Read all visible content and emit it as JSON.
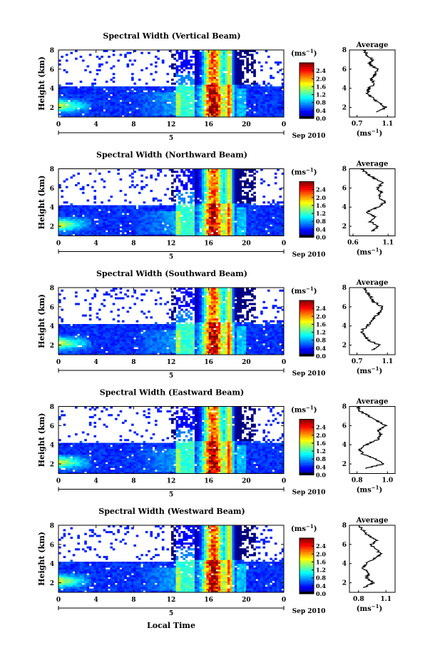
{
  "figure": {
    "shared_xlabel": "Local Time",
    "date_label": "Sep 2010",
    "day_label": "5",
    "unit_label": "(ms",
    "unit_exp": "−1",
    "height_axis_label": "Height (km)",
    "avg_title": "Average"
  },
  "chart_data": [
    {
      "type": "heatmap",
      "title": "Spectral Width (Vertical Beam)",
      "ylabel": "Height (km)",
      "x_ticks": [
        "0",
        "4",
        "8",
        "12",
        "16",
        "20",
        "0"
      ],
      "x_range": [
        0,
        24
      ],
      "y_ticks": [
        "2",
        "4",
        "6",
        "8"
      ],
      "y_range": [
        1,
        8
      ],
      "colorbar_ticks": [
        "0.0",
        "0.4",
        "0.8",
        "1.2",
        "1.6",
        "2.0",
        "2.4"
      ],
      "colorbar_range": [
        0,
        2.8
      ],
      "average_profile": {
        "title": "Average",
        "x_ticks": [
          "0.7",
          "1.1"
        ],
        "x_range": [
          0.6,
          1.2
        ],
        "y_ticks": [
          "2",
          "4",
          "6",
          "8"
        ],
        "y_range": [
          1,
          8
        ],
        "heights": [
          1.5,
          2.0,
          2.5,
          3.0,
          3.5,
          4.0,
          4.5,
          5.0,
          5.5,
          6.0,
          6.5,
          7.0,
          7.5,
          8.0
        ],
        "values": [
          0.95,
          1.08,
          0.98,
          0.9,
          0.84,
          0.86,
          0.93,
          0.88,
          0.95,
          0.97,
          0.86,
          0.9,
          0.83,
          0.8
        ]
      }
    },
    {
      "type": "heatmap",
      "title": "Spectral Width (Northward Beam)",
      "ylabel": "Height (km)",
      "x_ticks": [
        "0",
        "4",
        "8",
        "12",
        "16",
        "20",
        "0"
      ],
      "x_range": [
        0,
        24
      ],
      "y_ticks": [
        "2",
        "4",
        "6",
        "8"
      ],
      "y_range": [
        1,
        8
      ],
      "colorbar_ticks": [
        "0.0",
        "0.4",
        "0.8",
        "1.2",
        "1.6",
        "2.0",
        "2.4"
      ],
      "colorbar_range": [
        0,
        2.8
      ],
      "average_profile": {
        "title": "Average",
        "x_ticks": [
          "0.6",
          "1.1"
        ],
        "x_range": [
          0.55,
          1.2
        ],
        "y_ticks": [
          "2",
          "4",
          "6",
          "8"
        ],
        "y_range": [
          1,
          8
        ],
        "heights": [
          1.5,
          2.0,
          2.5,
          3.0,
          3.5,
          4.0,
          4.5,
          5.0,
          5.5,
          6.0,
          6.5,
          7.0,
          7.5,
          8.0
        ],
        "values": [
          0.88,
          0.96,
          0.84,
          0.9,
          0.8,
          0.95,
          1.06,
          0.96,
          1.0,
          0.95,
          1.02,
          0.9,
          0.8,
          0.72
        ]
      }
    },
    {
      "type": "heatmap",
      "title": "Spectral Width (Southward Beam)",
      "ylabel": "Height (km)",
      "x_ticks": [
        "0",
        "4",
        "8",
        "12",
        "16",
        "20",
        "0"
      ],
      "x_range": [
        0,
        24
      ],
      "y_ticks": [
        "2",
        "4",
        "6",
        "8"
      ],
      "y_range": [
        1,
        8
      ],
      "colorbar_ticks": [
        "0.0",
        "0.4",
        "0.8",
        "1.2",
        "1.6",
        "2.0",
        "2.4"
      ],
      "colorbar_range": [
        0,
        2.8
      ],
      "average_profile": {
        "title": "Average",
        "x_ticks": [
          "0.7",
          "1.1"
        ],
        "x_range": [
          0.6,
          1.2
        ],
        "y_ticks": [
          "2",
          "4",
          "6",
          "8"
        ],
        "y_range": [
          1,
          8
        ],
        "heights": [
          1.5,
          2.0,
          2.5,
          3.0,
          3.5,
          4.0,
          4.5,
          5.0,
          5.5,
          6.0,
          6.5,
          7.0,
          7.5,
          8.0
        ],
        "values": [
          0.9,
          0.99,
          0.85,
          0.8,
          0.76,
          0.83,
          0.9,
          0.95,
          1.0,
          1.04,
          0.92,
          0.88,
          0.83,
          0.8
        ]
      }
    },
    {
      "type": "heatmap",
      "title": "Spectral Width (Eastward Beam)",
      "ylabel": "Height (km)",
      "x_ticks": [
        "0",
        "4",
        "8",
        "12",
        "16",
        "20",
        "0"
      ],
      "x_range": [
        0,
        24
      ],
      "y_ticks": [
        "2",
        "4",
        "6",
        "8"
      ],
      "y_range": [
        1,
        8
      ],
      "colorbar_ticks": [
        "0.0",
        "0.4",
        "0.8",
        "1.2",
        "1.6",
        "2.0",
        "2.4"
      ],
      "colorbar_range": [
        0,
        2.8
      ],
      "average_profile": {
        "title": "Average",
        "x_ticks": [
          "0.8",
          "1.0"
        ],
        "x_range": [
          0.75,
          1.05
        ],
        "y_ticks": [
          "2",
          "4",
          "6",
          "8"
        ],
        "y_range": [
          1,
          8
        ],
        "heights": [
          1.5,
          2.0,
          2.5,
          3.0,
          3.5,
          4.0,
          4.5,
          5.0,
          5.5,
          6.0,
          6.5,
          7.0,
          7.5,
          8.0
        ],
        "values": [
          0.85,
          0.97,
          0.92,
          0.84,
          0.82,
          0.86,
          0.93,
          0.96,
          0.94,
          0.99,
          0.93,
          0.88,
          0.82,
          0.8
        ]
      }
    },
    {
      "type": "heatmap",
      "title": "Spectral Width (Westward Beam)",
      "ylabel": "Height (km)",
      "x_ticks": [
        "0",
        "4",
        "8",
        "12",
        "16",
        "20",
        "0"
      ],
      "x_range": [
        0,
        24
      ],
      "y_ticks": [
        "2",
        "4",
        "6",
        "8"
      ],
      "y_range": [
        1,
        8
      ],
      "colorbar_ticks": [
        "0.0",
        "0.4",
        "0.8",
        "1.2",
        "1.6",
        "2.0",
        "2.4"
      ],
      "colorbar_range": [
        0,
        2.8
      ],
      "average_profile": {
        "title": "Average",
        "x_ticks": [
          "0.8",
          "1.1"
        ],
        "x_range": [
          0.7,
          1.2
        ],
        "y_ticks": [
          "2",
          "4",
          "6",
          "8"
        ],
        "y_range": [
          1,
          8
        ],
        "heights": [
          1.5,
          2.0,
          2.5,
          3.0,
          3.5,
          4.0,
          4.5,
          5.0,
          5.5,
          6.0,
          6.5,
          7.0,
          7.5,
          8.0
        ],
        "values": [
          0.85,
          0.97,
          0.88,
          0.92,
          0.85,
          0.88,
          0.96,
          1.06,
          0.98,
          0.94,
          1.0,
          0.9,
          0.85,
          0.8
        ]
      }
    }
  ]
}
